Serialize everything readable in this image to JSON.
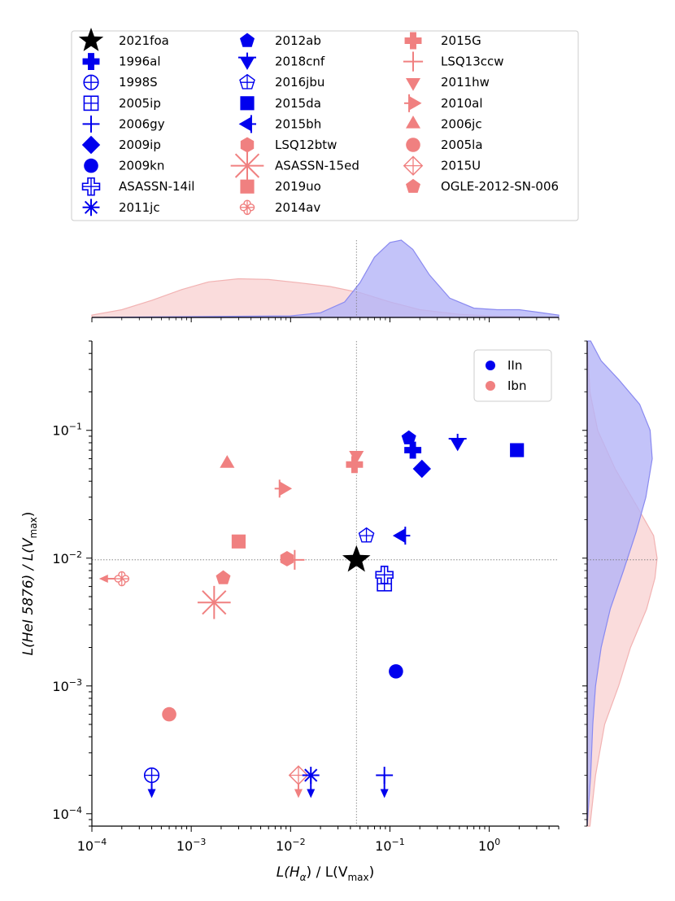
{
  "colors": {
    "iin": "#0000ee",
    "ibn": "#f08080",
    "iin_kde_fill": "#b4b4f8",
    "iin_kde_line": "#8a8af0",
    "ibn_kde_fill": "#f9d6d6",
    "ibn_kde_line": "#f2b3b3",
    "star": "#000000",
    "guide": "#777777"
  },
  "chart_data": {
    "type": "scatter",
    "xlabel": {
      "main": "L(H",
      "sub": "α",
      "mid": ") / L(V",
      "sub2": "max",
      "end": ")"
    },
    "ylabel": {
      "main": "L(HeI 5876) / L(V",
      "sub": "max",
      "end": ")"
    },
    "xscale": "log",
    "yscale": "log",
    "xlim": [
      0.0001,
      5.0
    ],
    "ylim": [
      8e-05,
      0.5
    ],
    "xticks": [
      {
        "value": 0.0001,
        "base": "10",
        "exp": "−4"
      },
      {
        "value": 0.001,
        "base": "10",
        "exp": "−3"
      },
      {
        "value": 0.01,
        "base": "10",
        "exp": "−2"
      },
      {
        "value": 0.1,
        "base": "10",
        "exp": "−1"
      },
      {
        "value": 1,
        "base": "10",
        "exp": "0"
      }
    ],
    "yticks": [
      {
        "value": 0.0001,
        "base": "10",
        "exp": "−4"
      },
      {
        "value": 0.001,
        "base": "10",
        "exp": "−3"
      },
      {
        "value": 0.01,
        "base": "10",
        "exp": "−2"
      },
      {
        "value": 0.1,
        "base": "10",
        "exp": "−1"
      }
    ],
    "guide_lines": {
      "x": 0.046,
      "y": 0.0097
    },
    "class_legend": {
      "position": "upper-right",
      "entries": [
        {
          "label": "IIn",
          "color": "iin"
        },
        {
          "label": "Ibn",
          "color": "ibn"
        }
      ]
    },
    "points": [
      {
        "name": "2021foa",
        "cls": "star",
        "marker": "star",
        "x": 0.046,
        "y": 0.0097
      },
      {
        "name": "1996al",
        "cls": "iin",
        "marker": "plus_filled",
        "x": 0.17,
        "y": 0.07
      },
      {
        "name": "1998S",
        "cls": "iin",
        "marker": "circle_plus",
        "x": 0.0004,
        "y": 0.0002,
        "limit": "down"
      },
      {
        "name": "2005ip",
        "cls": "iin",
        "marker": "square_plus",
        "x": 0.088,
        "y": 0.0063
      },
      {
        "name": "2006gy",
        "cls": "iin",
        "marker": "thin_plus",
        "x": 0.088,
        "y": 0.0002,
        "limit": "down"
      },
      {
        "name": "2009ip",
        "cls": "iin",
        "marker": "diamond",
        "x": 0.21,
        "y": 0.05
      },
      {
        "name": "2009kn",
        "cls": "iin",
        "marker": "circle",
        "x": 0.115,
        "y": 0.0013
      },
      {
        "name": "ASASSN-14il",
        "cls": "iin",
        "marker": "plus_open",
        "x": 0.088,
        "y": 0.0074
      },
      {
        "name": "2011jc",
        "cls": "iin",
        "marker": "asterisk",
        "x": 0.016,
        "y": 0.0002,
        "limit": "down"
      },
      {
        "name": "2012ab",
        "cls": "iin",
        "marker": "pentagon",
        "x": 0.155,
        "y": 0.087
      },
      {
        "name": "2018cnf",
        "cls": "iin",
        "marker": "triangle_down_bar",
        "x": 0.48,
        "y": 0.08
      },
      {
        "name": "2016jbu",
        "cls": "iin",
        "marker": "pentagon_plus",
        "x": 0.058,
        "y": 0.015
      },
      {
        "name": "2015da",
        "cls": "iin",
        "marker": "square",
        "x": 1.9,
        "y": 0.07
      },
      {
        "name": "2015bh",
        "cls": "iin",
        "marker": "triangle_left_bar",
        "x": 0.13,
        "y": 0.015
      },
      {
        "name": "LSQ12btw",
        "cls": "ibn",
        "marker": "hexagon",
        "x": 0.0092,
        "y": 0.0099
      },
      {
        "name": "ASASSN-15ed",
        "cls": "ibn",
        "marker": "asterisk_big",
        "x": 0.0017,
        "y": 0.0045
      },
      {
        "name": "2019uo",
        "cls": "ibn",
        "marker": "square",
        "x": 0.003,
        "y": 0.0135
      },
      {
        "name": "2014av",
        "cls": "ibn",
        "marker": "clover",
        "x": 0.0002,
        "y": 0.0069,
        "limit": "left"
      },
      {
        "name": "2015G",
        "cls": "ibn",
        "marker": "plus_filled",
        "x": 0.044,
        "y": 0.054
      },
      {
        "name": "LSQ13ccw",
        "cls": "ibn",
        "marker": "thin_plus_big",
        "x": 0.011,
        "y": 0.0097
      },
      {
        "name": "2011hw",
        "cls": "ibn",
        "marker": "triangle_down",
        "x": 0.046,
        "y": 0.064
      },
      {
        "name": "2010al",
        "cls": "ibn",
        "marker": "triangle_right_bar",
        "x": 0.0085,
        "y": 0.035
      },
      {
        "name": "2006jc",
        "cls": "ibn",
        "marker": "triangle_up",
        "x": 0.0023,
        "y": 0.055
      },
      {
        "name": "2005la",
        "cls": "ibn",
        "marker": "circle",
        "x": 0.0006,
        "y": 0.0006
      },
      {
        "name": "2015U",
        "cls": "ibn",
        "marker": "diamond_plus",
        "x": 0.012,
        "y": 0.0002,
        "limit": "down"
      },
      {
        "name": "OGLE-2012-SN-006",
        "cls": "ibn",
        "marker": "pentagon",
        "x": 0.0021,
        "y": 0.007
      }
    ],
    "kde_x": {
      "iin": [
        [
          0.0001,
          0.0
        ],
        [
          0.01,
          0.02
        ],
        [
          0.02,
          0.06
        ],
        [
          0.035,
          0.2
        ],
        [
          0.05,
          0.45
        ],
        [
          0.07,
          0.78
        ],
        [
          0.1,
          0.97
        ],
        [
          0.13,
          1.0
        ],
        [
          0.17,
          0.88
        ],
        [
          0.25,
          0.55
        ],
        [
          0.4,
          0.25
        ],
        [
          0.7,
          0.12
        ],
        [
          1.2,
          0.1
        ],
        [
          2.0,
          0.1
        ],
        [
          3.0,
          0.07
        ],
        [
          5.0,
          0.03
        ]
      ],
      "ibn": [
        [
          0.0001,
          0.03
        ],
        [
          0.0002,
          0.1
        ],
        [
          0.0004,
          0.22
        ],
        [
          0.0008,
          0.36
        ],
        [
          0.0015,
          0.46
        ],
        [
          0.003,
          0.5
        ],
        [
          0.006,
          0.49
        ],
        [
          0.012,
          0.45
        ],
        [
          0.025,
          0.4
        ],
        [
          0.05,
          0.32
        ],
        [
          0.1,
          0.2
        ],
        [
          0.2,
          0.1
        ],
        [
          0.5,
          0.04
        ],
        [
          1.0,
          0.02
        ],
        [
          5.0,
          0.0
        ]
      ]
    },
    "kde_y": {
      "iin": [
        [
          8e-05,
          0.0
        ],
        [
          0.0002,
          0.05
        ],
        [
          0.0005,
          0.08
        ],
        [
          0.001,
          0.12
        ],
        [
          0.002,
          0.2
        ],
        [
          0.004,
          0.33
        ],
        [
          0.008,
          0.52
        ],
        [
          0.016,
          0.7
        ],
        [
          0.03,
          0.84
        ],
        [
          0.06,
          0.93
        ],
        [
          0.1,
          0.9
        ],
        [
          0.16,
          0.75
        ],
        [
          0.25,
          0.45
        ],
        [
          0.35,
          0.2
        ],
        [
          0.5,
          0.05
        ]
      ],
      "ibn": [
        [
          8e-05,
          0.04
        ],
        [
          0.0002,
          0.12
        ],
        [
          0.0005,
          0.25
        ],
        [
          0.001,
          0.45
        ],
        [
          0.002,
          0.62
        ],
        [
          0.004,
          0.85
        ],
        [
          0.007,
          0.97
        ],
        [
          0.01,
          1.0
        ],
        [
          0.015,
          0.95
        ],
        [
          0.025,
          0.72
        ],
        [
          0.05,
          0.4
        ],
        [
          0.1,
          0.15
        ],
        [
          0.2,
          0.04
        ],
        [
          0.5,
          0.0
        ]
      ]
    }
  }
}
